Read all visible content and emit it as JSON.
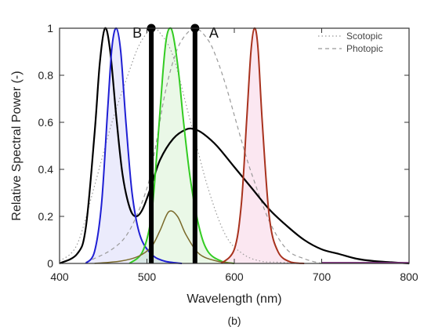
{
  "chart_data": {
    "type": "line",
    "xlabel": "Wavelength (nm)",
    "ylabel": "Relative Spectral Power (-)",
    "caption": "(b)",
    "xlim": [
      400,
      800
    ],
    "ylim": [
      0,
      1.0
    ],
    "xticks": [
      400,
      500,
      600,
      700,
      800
    ],
    "yticks": [
      0,
      0.2,
      0.4,
      0.6,
      0.8,
      1.0
    ],
    "ytick_labels": [
      "0",
      "0.2",
      "0.4",
      "0.6",
      "0.8",
      "1"
    ],
    "grid": false,
    "legend_position": "top-right",
    "legend": [
      {
        "label": "Scotopic",
        "style": "dotted",
        "color": "#999999"
      },
      {
        "label": "Photopic",
        "style": "dashed",
        "color": "#999999"
      }
    ],
    "series": [
      {
        "key": "scotopic",
        "color": "#9a9a9a",
        "style": "dotted",
        "width": 1.2,
        "fill": null,
        "x": [
          400,
          420,
          440,
          460,
          480,
          490,
          500,
          507,
          515,
          530,
          550,
          570,
          590,
          610,
          630,
          650,
          680
        ],
        "y": [
          0.01,
          0.08,
          0.33,
          0.6,
          0.82,
          0.92,
          0.98,
          1.0,
          0.98,
          0.88,
          0.6,
          0.32,
          0.12,
          0.04,
          0.01,
          0.005,
          0.0
        ]
      },
      {
        "key": "photopic",
        "color": "#9a9a9a",
        "style": "dashed",
        "width": 1.2,
        "fill": null,
        "x": [
          430,
          460,
          480,
          500,
          510,
          520,
          530,
          540,
          555,
          570,
          580,
          590,
          600,
          610,
          620,
          640,
          660,
          680,
          700
        ],
        "y": [
          0.005,
          0.06,
          0.14,
          0.32,
          0.5,
          0.71,
          0.86,
          0.95,
          1.0,
          0.95,
          0.87,
          0.76,
          0.63,
          0.5,
          0.38,
          0.18,
          0.06,
          0.02,
          0.0
        ]
      },
      {
        "key": "black-led",
        "color": "#000000",
        "style": "solid",
        "width": 2.2,
        "fill": null,
        "x": [
          400,
          420,
          430,
          440,
          446,
          452,
          458,
          465,
          472,
          480,
          487,
          495,
          505,
          515,
          530,
          545,
          555,
          565,
          580,
          600,
          620,
          640,
          660,
          680,
          700,
          720,
          740,
          760,
          780,
          800
        ],
        "y": [
          0.0,
          0.04,
          0.15,
          0.55,
          0.85,
          1.0,
          0.9,
          0.62,
          0.38,
          0.24,
          0.2,
          0.23,
          0.33,
          0.44,
          0.53,
          0.57,
          0.57,
          0.55,
          0.5,
          0.41,
          0.32,
          0.23,
          0.16,
          0.1,
          0.06,
          0.04,
          0.02,
          0.01,
          0.005,
          0.0
        ]
      },
      {
        "key": "blue",
        "color": "#1f1fd4",
        "style": "solid",
        "width": 2.0,
        "fill": "rgba(90,90,230,0.12)",
        "x": [
          430,
          440,
          448,
          455,
          460,
          465,
          470,
          476,
          483,
          492,
          505,
          520,
          540
        ],
        "y": [
          0.0,
          0.05,
          0.25,
          0.65,
          0.92,
          1.0,
          0.9,
          0.6,
          0.3,
          0.12,
          0.04,
          0.01,
          0.0
        ]
      },
      {
        "key": "green",
        "color": "#33cc22",
        "style": "solid",
        "width": 2.0,
        "fill": "rgba(80,200,60,0.12)",
        "x": [
          480,
          495,
          505,
          512,
          518,
          522,
          526,
          530,
          536,
          542,
          550,
          560,
          570,
          585,
          600
        ],
        "y": [
          0.0,
          0.05,
          0.2,
          0.5,
          0.8,
          0.95,
          1.0,
          0.97,
          0.82,
          0.6,
          0.35,
          0.15,
          0.05,
          0.01,
          0.0
        ]
      },
      {
        "key": "olive",
        "color": "#7a6a2a",
        "style": "solid",
        "width": 1.5,
        "fill": null,
        "x": [
          440,
          470,
          490,
          505,
          515,
          525,
          535,
          545,
          560,
          580,
          600
        ],
        "y": [
          0.0,
          0.01,
          0.03,
          0.07,
          0.14,
          0.22,
          0.2,
          0.12,
          0.04,
          0.01,
          0.0
        ]
      },
      {
        "key": "red",
        "color": "#a8321e",
        "style": "solid",
        "width": 2.0,
        "fill": "rgba(235,120,180,0.18)",
        "x": [
          585,
          600,
          608,
          614,
          619,
          623,
          627,
          632,
          640,
          650,
          665,
          680
        ],
        "y": [
          0.0,
          0.06,
          0.25,
          0.6,
          0.9,
          1.0,
          0.92,
          0.6,
          0.2,
          0.05,
          0.005,
          0.0
        ]
      },
      {
        "key": "purple",
        "color": "#7a2a7a",
        "style": "solid",
        "width": 1.4,
        "fill": null,
        "x": [
          700,
          740,
          780,
          800
        ],
        "y": [
          0.004,
          0.004,
          0.004,
          0.004
        ]
      }
    ],
    "markers": [
      {
        "label": "B",
        "x": 505,
        "y": 1.0
      },
      {
        "label": "A",
        "x": 555,
        "y": 1.0
      }
    ]
  }
}
